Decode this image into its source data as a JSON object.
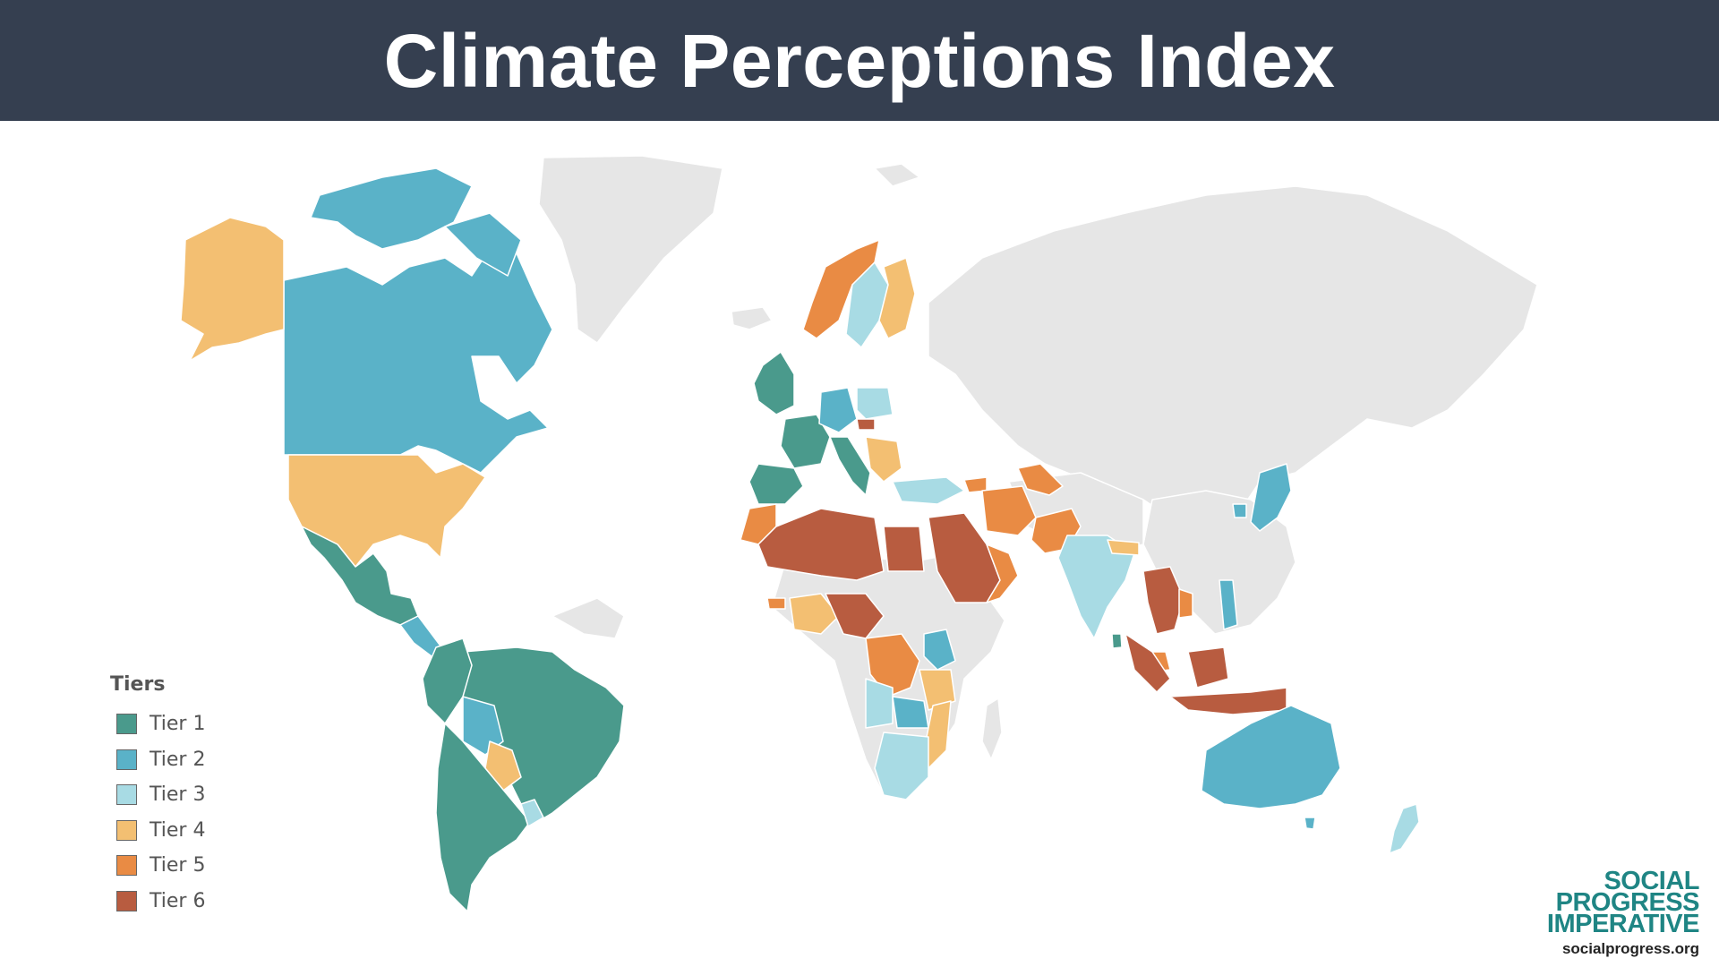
{
  "header": {
    "title": "Climate Perceptions Index"
  },
  "colors": {
    "header_bg": "#353f50",
    "tier1": "#4a9a8c",
    "tier2": "#5ab2c8",
    "tier3": "#a8dbe4",
    "tier4": "#f3bf72",
    "tier5": "#e98b44",
    "tier6": "#b85c40",
    "no_data": "#e6e6e6",
    "brand": "#1f8584"
  },
  "legend": {
    "title": "Tiers",
    "items": [
      {
        "label": "Tier 1",
        "color": "#4a9a8c"
      },
      {
        "label": "Tier 2",
        "color": "#5ab2c8"
      },
      {
        "label": "Tier 3",
        "color": "#a8dbe4"
      },
      {
        "label": "Tier 4",
        "color": "#f3bf72"
      },
      {
        "label": "Tier 5",
        "color": "#e98b44"
      },
      {
        "label": "Tier 6",
        "color": "#b85c40"
      }
    ]
  },
  "brand": {
    "line1": "SOCIAL",
    "line2": "PROGRESS",
    "line3": "IMPERATIVE",
    "url": "socialprogress.org"
  }
}
